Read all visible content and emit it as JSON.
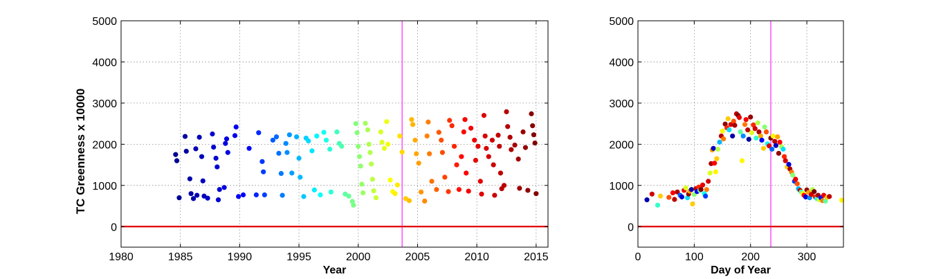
{
  "chart_data": [
    {
      "type": "scatter",
      "xlabel": "Year",
      "ylabel": "TC Greenness x 10000",
      "xlim": [
        1980,
        2016
      ],
      "ylim": [
        -500,
        5000
      ],
      "x_ticks": [
        1980,
        1985,
        1990,
        1995,
        2000,
        2005,
        2010,
        2015
      ],
      "y_ticks": [
        0,
        1000,
        2000,
        3000,
        4000,
        5000
      ],
      "grid": true,
      "colormap": "jet, by year",
      "colormap_stops": [
        "#00008f",
        "#0000ff",
        "#00ffff",
        "#ffff00",
        "#ff0000",
        "#800000"
      ],
      "color_range": [
        1984.5,
        2015
      ],
      "hline": {
        "y": 0,
        "color": "#e00000"
      },
      "vline": {
        "x": 2003.7,
        "color": "#ff33ff"
      },
      "points": [
        [
          1984.6,
          1750
        ],
        [
          1984.7,
          1600
        ],
        [
          1984.9,
          700
        ],
        [
          1985.4,
          2190
        ],
        [
          1985.5,
          1830
        ],
        [
          1985.8,
          1160
        ],
        [
          1985.9,
          800
        ],
        [
          1986.1,
          680
        ],
        [
          1986.3,
          1890
        ],
        [
          1986.4,
          760
        ],
        [
          1986.6,
          2170
        ],
        [
          1986.8,
          1700
        ],
        [
          1986.9,
          1110
        ],
        [
          1987.0,
          740
        ],
        [
          1987.3,
          690
        ],
        [
          1987.7,
          2250
        ],
        [
          1987.8,
          1930
        ],
        [
          1988.0,
          1660
        ],
        [
          1988.1,
          1450
        ],
        [
          1988.2,
          650
        ],
        [
          1988.3,
          900
        ],
        [
          1988.7,
          950
        ],
        [
          1988.8,
          2020
        ],
        [
          1988.9,
          2130
        ],
        [
          1989.0,
          1800
        ],
        [
          1989.6,
          2210
        ],
        [
          1989.7,
          2420
        ],
        [
          1989.9,
          730
        ],
        [
          1990.3,
          770
        ],
        [
          1990.8,
          1900
        ],
        [
          1991.4,
          770
        ],
        [
          1991.6,
          2280
        ],
        [
          1991.9,
          1580
        ],
        [
          1992.0,
          1330
        ],
        [
          1992.1,
          770
        ],
        [
          1992.8,
          2100
        ],
        [
          1993.1,
          2180
        ],
        [
          1993.3,
          1780
        ],
        [
          1993.5,
          1290
        ],
        [
          1993.6,
          760
        ],
        [
          1993.9,
          2020
        ],
        [
          1994.0,
          1800
        ],
        [
          1994.2,
          2230
        ],
        [
          1994.4,
          1300
        ],
        [
          1994.8,
          2180
        ],
        [
          1995.0,
          1660
        ],
        [
          1995.1,
          1200
        ],
        [
          1995.4,
          730
        ],
        [
          1995.6,
          2150
        ],
        [
          1995.8,
          2080
        ],
        [
          1996.1,
          1840
        ],
        [
          1996.3,
          890
        ],
        [
          1996.5,
          2200
        ],
        [
          1996.8,
          770
        ],
        [
          1997.1,
          2290
        ],
        [
          1997.3,
          2100
        ],
        [
          1997.6,
          1880
        ],
        [
          1997.7,
          840
        ],
        [
          1998.2,
          2300
        ],
        [
          1998.4,
          2020
        ],
        [
          1998.6,
          1950
        ],
        [
          1998.9,
          790
        ],
        [
          1999.2,
          740
        ],
        [
          1999.5,
          610
        ],
        [
          1999.6,
          520
        ],
        [
          1999.8,
          2500
        ],
        [
          1999.9,
          2280
        ],
        [
          2000.0,
          1950
        ],
        [
          2000.1,
          1700
        ],
        [
          2000.2,
          1470
        ],
        [
          2000.3,
          1030
        ],
        [
          2000.4,
          820
        ],
        [
          2000.6,
          2510
        ],
        [
          2000.8,
          2350
        ],
        [
          2000.9,
          2000
        ],
        [
          2001.0,
          1800
        ],
        [
          2001.1,
          1520
        ],
        [
          2001.2,
          1150
        ],
        [
          2001.3,
          870
        ],
        [
          2001.5,
          700
        ],
        [
          2001.9,
          2300
        ],
        [
          2002.0,
          2050
        ],
        [
          2002.2,
          1900
        ],
        [
          2002.4,
          2550
        ],
        [
          2002.5,
          2000
        ],
        [
          2002.7,
          1130
        ],
        [
          2002.9,
          850
        ],
        [
          2003.1,
          800
        ],
        [
          2003.3,
          1010
        ],
        [
          2003.5,
          2200
        ],
        [
          2003.7,
          1810
        ],
        [
          2004.0,
          680
        ],
        [
          2004.3,
          630
        ],
        [
          2004.5,
          2600
        ],
        [
          2004.6,
          2480
        ],
        [
          2004.8,
          2100
        ],
        [
          2004.9,
          1770
        ],
        [
          2005.1,
          1540
        ],
        [
          2005.3,
          840
        ],
        [
          2005.6,
          620
        ],
        [
          2005.8,
          2200
        ],
        [
          2005.9,
          2540
        ],
        [
          2006.0,
          1770
        ],
        [
          2006.2,
          1100
        ],
        [
          2006.6,
          900
        ],
        [
          2006.8,
          2290
        ],
        [
          2007.0,
          2100
        ],
        [
          2007.1,
          1800
        ],
        [
          2007.3,
          1200
        ],
        [
          2007.6,
          850
        ],
        [
          2007.7,
          2580
        ],
        [
          2007.9,
          2450
        ],
        [
          2008.1,
          1950
        ],
        [
          2008.3,
          1500
        ],
        [
          2008.5,
          900
        ],
        [
          2008.7,
          1700
        ],
        [
          2008.9,
          2300
        ],
        [
          2009.0,
          2600
        ],
        [
          2009.1,
          1300
        ],
        [
          2009.3,
          860
        ],
        [
          2009.5,
          2390
        ],
        [
          2009.8,
          2100
        ],
        [
          2009.9,
          1610
        ],
        [
          2010.1,
          1950
        ],
        [
          2010.3,
          1100
        ],
        [
          2010.4,
          790
        ],
        [
          2010.6,
          2700
        ],
        [
          2010.7,
          2200
        ],
        [
          2010.8,
          1900
        ],
        [
          2011.0,
          1700
        ],
        [
          2011.3,
          2100
        ],
        [
          2011.4,
          1500
        ],
        [
          2011.5,
          760
        ],
        [
          2011.8,
          2220
        ],
        [
          2011.9,
          1950
        ],
        [
          2012.0,
          1300
        ],
        [
          2012.1,
          920
        ],
        [
          2012.3,
          1000
        ],
        [
          2012.5,
          2790
        ],
        [
          2012.6,
          2430
        ],
        [
          2012.8,
          2170
        ],
        [
          2012.9,
          1870
        ],
        [
          2013.2,
          1980
        ],
        [
          2013.5,
          1640
        ],
        [
          2013.6,
          930
        ],
        [
          2013.9,
          2300
        ],
        [
          2014.1,
          1920
        ],
        [
          2014.3,
          880
        ],
        [
          2014.6,
          2740
        ],
        [
          2014.7,
          2450
        ],
        [
          2014.8,
          2230
        ],
        [
          2014.9,
          2030
        ],
        [
          2015.0,
          800
        ]
      ]
    },
    {
      "type": "scatter",
      "xlabel": "Day of Year",
      "ylabel": "",
      "xlim": [
        0,
        365
      ],
      "ylim": [
        -500,
        5000
      ],
      "x_ticks": [
        0,
        100,
        200,
        300
      ],
      "y_ticks": [
        0,
        1000,
        2000,
        3000,
        4000,
        5000
      ],
      "grid": true,
      "colormap": "jet, by year",
      "hline": {
        "y": 0,
        "color": "#e00000"
      },
      "vline": {
        "x": 236,
        "color": "#ff33ff"
      },
      "points": [
        [
          16,
          650,
          1986
        ],
        [
          25,
          790,
          2011
        ],
        [
          35,
          520,
          1998
        ],
        [
          40,
          740,
          2004
        ],
        [
          55,
          710,
          2007
        ],
        [
          62,
          820,
          2009
        ],
        [
          65,
          660,
          2012
        ],
        [
          70,
          840,
          2013
        ],
        [
          75,
          760,
          1993
        ],
        [
          78,
          720,
          1988
        ],
        [
          82,
          880,
          2010
        ],
        [
          85,
          940,
          2002
        ],
        [
          88,
          700,
          1996
        ],
        [
          90,
          790,
          2014
        ],
        [
          92,
          860,
          2005
        ],
        [
          95,
          900,
          1986
        ],
        [
          97,
          550,
          2004
        ],
        [
          100,
          780,
          2000
        ],
        [
          103,
          920,
          2012
        ],
        [
          105,
          850,
          1990
        ],
        [
          108,
          960,
          2008
        ],
        [
          110,
          880,
          1999
        ],
        [
          112,
          900,
          2015
        ],
        [
          115,
          1010,
          2010
        ],
        [
          118,
          800,
          1997
        ],
        [
          120,
          740,
          1992
        ],
        [
          122,
          900,
          2006
        ],
        [
          125,
          1100,
          2011
        ],
        [
          128,
          1300,
          2002
        ],
        [
          130,
          1530,
          2013
        ],
        [
          132,
          1860,
          2005
        ],
        [
          134,
          1900,
          1988
        ],
        [
          136,
          1540,
          2009
        ],
        [
          138,
          1330,
          2003
        ],
        [
          140,
          1650,
          2004
        ],
        [
          142,
          1880,
          2001
        ],
        [
          145,
          2050,
          1995
        ],
        [
          148,
          2200,
          2012
        ],
        [
          150,
          2320,
          2003
        ],
        [
          152,
          2130,
          2006
        ],
        [
          155,
          2490,
          2014
        ],
        [
          158,
          2400,
          2008
        ],
        [
          160,
          2620,
          2004
        ],
        [
          162,
          2350,
          1996
        ],
        [
          165,
          2480,
          2011
        ],
        [
          168,
          2200,
          1986
        ],
        [
          170,
          2560,
          2007
        ],
        [
          172,
          2460,
          2013
        ],
        [
          175,
          2740,
          2012
        ],
        [
          178,
          2700,
          2015
        ],
        [
          180,
          2650,
          2010
        ],
        [
          182,
          2300,
          1999
        ],
        [
          185,
          1600,
          2003
        ],
        [
          187,
          2200,
          1994
        ],
        [
          190,
          2480,
          2006
        ],
        [
          192,
          2600,
          2009
        ],
        [
          195,
          2350,
          2012
        ],
        [
          197,
          2120,
          1985
        ],
        [
          200,
          2660,
          2014
        ],
        [
          202,
          2280,
          2002
        ],
        [
          205,
          2470,
          2008
        ],
        [
          208,
          2380,
          2011
        ],
        [
          210,
          2150,
          1998
        ],
        [
          213,
          2520,
          2001
        ],
        [
          215,
          2300,
          2013
        ],
        [
          218,
          2200,
          2005
        ],
        [
          220,
          2100,
          1990
        ],
        [
          223,
          1900,
          2004
        ],
        [
          225,
          2420,
          2000
        ],
        [
          228,
          2300,
          2007
        ],
        [
          230,
          2010,
          1997
        ],
        [
          233,
          1960,
          2010
        ],
        [
          236,
          2150,
          2015
        ],
        [
          238,
          1880,
          1993
        ],
        [
          240,
          2200,
          2003
        ],
        [
          243,
          2070,
          2012
        ],
        [
          245,
          1970,
          1987
        ],
        [
          248,
          2180,
          2005
        ],
        [
          250,
          1780,
          2014
        ],
        [
          252,
          2050,
          2009
        ],
        [
          255,
          1940,
          2001
        ],
        [
          258,
          1880,
          1996
        ],
        [
          260,
          1700,
          2008
        ],
        [
          262,
          1600,
          2011
        ],
        [
          265,
          1450,
          2004
        ],
        [
          268,
          1510,
          1989
        ],
        [
          270,
          1400,
          2013
        ],
        [
          273,
          1320,
          2006
        ],
        [
          275,
          1250,
          2000
        ],
        [
          278,
          1100,
          1992
        ],
        [
          280,
          1150,
          2010
        ],
        [
          283,
          1040,
          2007
        ],
        [
          285,
          920,
          1995
        ],
        [
          288,
          880,
          2012
        ],
        [
          290,
          840,
          1999
        ],
        [
          293,
          800,
          2003
        ],
        [
          295,
          760,
          2009
        ],
        [
          298,
          720,
          1988
        ],
        [
          300,
          890,
          2014
        ],
        [
          303,
          830,
          2005
        ],
        [
          305,
          700,
          1994
        ],
        [
          308,
          780,
          2011
        ],
        [
          310,
          900,
          2001
        ],
        [
          313,
          850,
          2015
        ],
        [
          315,
          720,
          2008
        ],
        [
          318,
          680,
          1997
        ],
        [
          320,
          760,
          2013
        ],
        [
          322,
          650,
          2002
        ],
        [
          325,
          700,
          1991
        ],
        [
          328,
          630,
          2006
        ],
        [
          330,
          760,
          2010
        ],
        [
          333,
          620,
          1999
        ],
        [
          336,
          710,
          2004
        ],
        [
          340,
          730,
          2012
        ],
        [
          362,
          640,
          2003
        ]
      ]
    }
  ]
}
